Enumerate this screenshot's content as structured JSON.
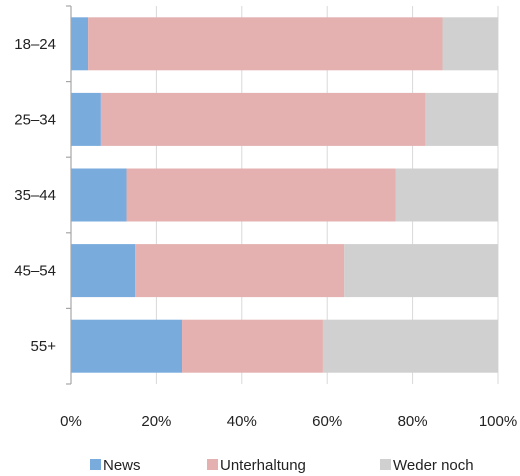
{
  "chart_data": {
    "type": "bar",
    "orientation": "horizontal",
    "stacked": "percent",
    "categories": [
      "18–24",
      "25–34",
      "35–44",
      "45–54",
      "55+"
    ],
    "series": [
      {
        "name": "News",
        "values": [
          4,
          7,
          13,
          15,
          26
        ],
        "color": "#7aabdd"
      },
      {
        "name": "Unterhaltung",
        "values": [
          83,
          76,
          63,
          49,
          33
        ],
        "color": "#e4b1b0"
      },
      {
        "name": "Weder noch",
        "values": [
          13,
          17,
          24,
          36,
          41
        ],
        "color": "#d0d0d0"
      }
    ],
    "x_ticks": [
      "0%",
      "20%",
      "40%",
      "60%",
      "80%",
      "100%"
    ],
    "xlim": [
      0,
      100
    ],
    "grid": "vertical",
    "grid_color": "#d9d9d9",
    "legend": "bottom"
  }
}
